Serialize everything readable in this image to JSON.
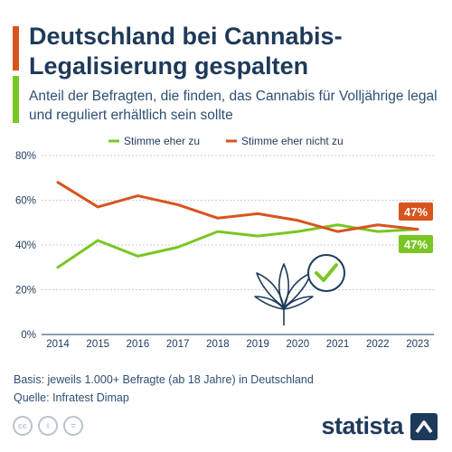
{
  "header": {
    "title_line1": "Deutschland bei Cannabis-",
    "title_line2": "Legalisierung gespalten",
    "subtitle": "Anteil der Befragten, die finden, das Cannabis für Volljährige legal und reguliert erhältlich sein sollte"
  },
  "colors": {
    "green": "#7ac625",
    "orange": "#d9531e",
    "navy": "#1e3a5a",
    "grid": "#c9ced4",
    "icon_gray": "#b9c3cc"
  },
  "chart_data": {
    "type": "line",
    "x": [
      "2014",
      "2015",
      "2016",
      "2017",
      "2018",
      "2019",
      "2020",
      "2021",
      "2022",
      "2023"
    ],
    "series": [
      {
        "name": "Stimme eher zu",
        "color": "#7ac625",
        "values": [
          30,
          42,
          35,
          39,
          46,
          44,
          46,
          49,
          46,
          47
        ]
      },
      {
        "name": "Stimme eher nicht zu",
        "color": "#d9531e",
        "values": [
          68,
          57,
          62,
          58,
          52,
          54,
          51,
          46,
          49,
          47
        ]
      }
    ],
    "ylim": [
      0,
      80
    ],
    "yticks": [
      "0%",
      "20%",
      "40%",
      "60%",
      "80%"
    ],
    "end_labels": [
      "47%",
      "47%"
    ],
    "legend_position": "top-center",
    "grid": true
  },
  "footer": {
    "basis": "Basis: jeweils 1.000+ Befragte (ab 18 Jahre) in Deutschland",
    "source": "Quelle: Infratest Dimap"
  },
  "license_icons": [
    "cc",
    "i",
    "="
  ],
  "brand": {
    "name": "statista"
  }
}
